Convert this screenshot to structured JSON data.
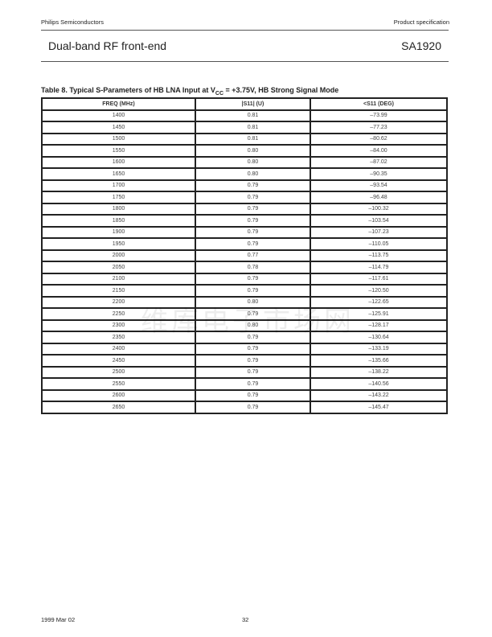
{
  "header": {
    "company": "Philips Semiconductors",
    "doc_type": "Product specification",
    "title": "Dual-band RF front-end",
    "part": "SA1920"
  },
  "table": {
    "caption_pre": "Table 8.  Typical S-Parameters of HB LNA Input at V",
    "caption_sub": "CC",
    "caption_post": " = +3.75V, HB Strong Signal Mode",
    "columns": [
      "FREQ (MHz)",
      "|S11| (U)",
      "<S11 (DEG)"
    ],
    "rows": [
      [
        "1400",
        "0.81",
        "–73.99"
      ],
      [
        "1450",
        "0.81",
        "–77.23"
      ],
      [
        "1500",
        "0.81",
        "–80.62"
      ],
      [
        "1550",
        "0.80",
        "–84.00"
      ],
      [
        "1600",
        "0.80",
        "–87.02"
      ],
      [
        "1650",
        "0.80",
        "–90.35"
      ],
      [
        "1700",
        "0.79",
        "–93.54"
      ],
      [
        "1750",
        "0.79",
        "–96.48"
      ],
      [
        "1800",
        "0.79",
        "–100.32"
      ],
      [
        "1850",
        "0.79",
        "–103.54"
      ],
      [
        "1900",
        "0.79",
        "–107.23"
      ],
      [
        "1950",
        "0.79",
        "–110.05"
      ],
      [
        "2000",
        "0.77",
        "–113.75"
      ],
      [
        "2050",
        "0.78",
        "–114.79"
      ],
      [
        "2100",
        "0.79",
        "–117.61"
      ],
      [
        "2150",
        "0.79",
        "–120.50"
      ],
      [
        "2200",
        "0.80",
        "–122.65"
      ],
      [
        "2250",
        "0.79",
        "–125.91"
      ],
      [
        "2300",
        "0.80",
        "–128.17"
      ],
      [
        "2350",
        "0.79",
        "–130.64"
      ],
      [
        "2400",
        "0.79",
        "–133.19"
      ],
      [
        "2450",
        "0.79",
        "–135.66"
      ],
      [
        "2500",
        "0.79",
        "–138.22"
      ],
      [
        "2550",
        "0.79",
        "–140.56"
      ],
      [
        "2600",
        "0.79",
        "–143.22"
      ],
      [
        "2650",
        "0.79",
        "–145.47"
      ]
    ]
  },
  "watermark": "维库电子市场网",
  "footer": {
    "date": "1999 Mar 02",
    "page": "32"
  }
}
